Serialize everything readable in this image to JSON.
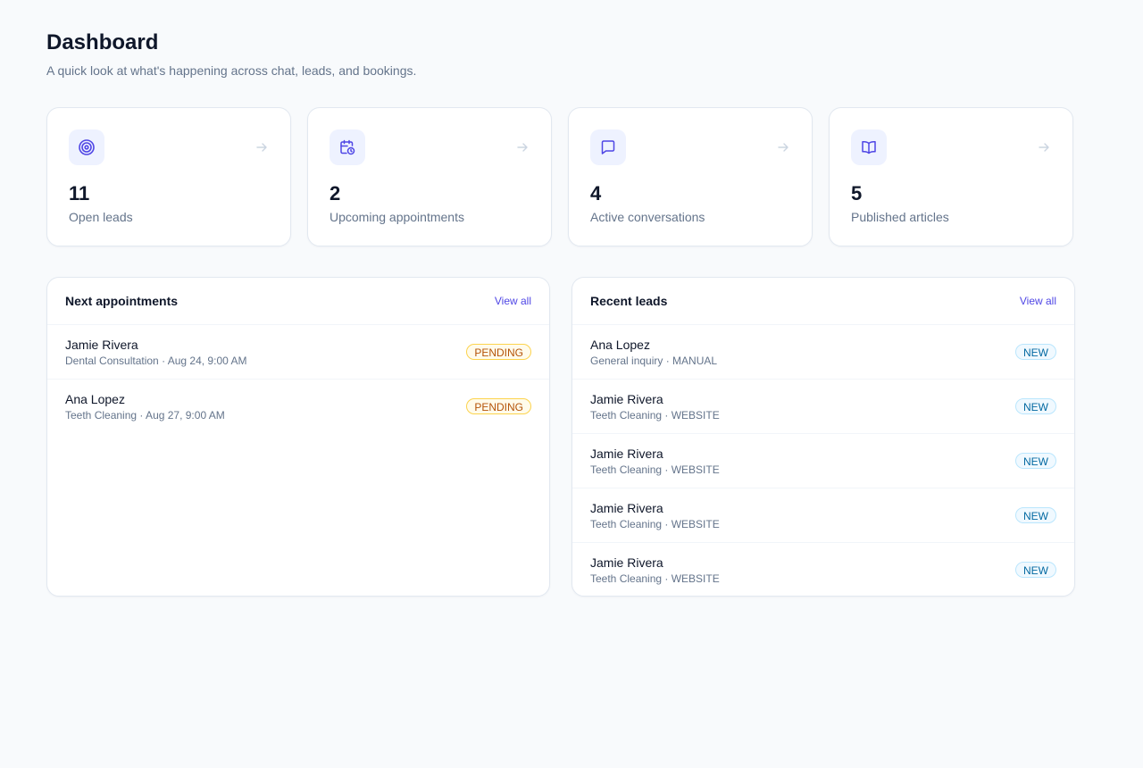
{
  "header": {
    "title": "Dashboard",
    "subtitle": "A quick look at what's happening across chat, leads, and bookings."
  },
  "colors": {
    "accent": "#4f46e5",
    "icon_bg": "#eef2ff",
    "pending_badge": "#b45309",
    "new_badge": "#0369a1"
  },
  "stats": [
    {
      "icon": "target-icon",
      "value": "11",
      "label": "Open leads"
    },
    {
      "icon": "calendar-clock-icon",
      "value": "2",
      "label": "Upcoming appointments"
    },
    {
      "icon": "chat-bubble-icon",
      "value": "4",
      "label": "Active conversations"
    },
    {
      "icon": "open-book-icon",
      "value": "5",
      "label": "Published articles"
    }
  ],
  "appointments": {
    "title": "Next appointments",
    "view_all": "View all",
    "items": [
      {
        "name": "Jamie Rivera",
        "meta": "Dental Consultation · Aug 24, 9:00 AM",
        "status": "PENDING"
      },
      {
        "name": "Ana Lopez",
        "meta": "Teeth Cleaning · Aug 27, 9:00 AM",
        "status": "PENDING"
      }
    ]
  },
  "leads": {
    "title": "Recent leads",
    "view_all": "View all",
    "items": [
      {
        "name": "Ana Lopez",
        "meta": "General inquiry · MANUAL",
        "status": "NEW"
      },
      {
        "name": "Jamie Rivera",
        "meta": "Teeth Cleaning · WEBSITE",
        "status": "NEW"
      },
      {
        "name": "Jamie Rivera",
        "meta": "Teeth Cleaning · WEBSITE",
        "status": "NEW"
      },
      {
        "name": "Jamie Rivera",
        "meta": "Teeth Cleaning · WEBSITE",
        "status": "NEW"
      },
      {
        "name": "Jamie Rivera",
        "meta": "Teeth Cleaning · WEBSITE",
        "status": "NEW"
      }
    ]
  }
}
